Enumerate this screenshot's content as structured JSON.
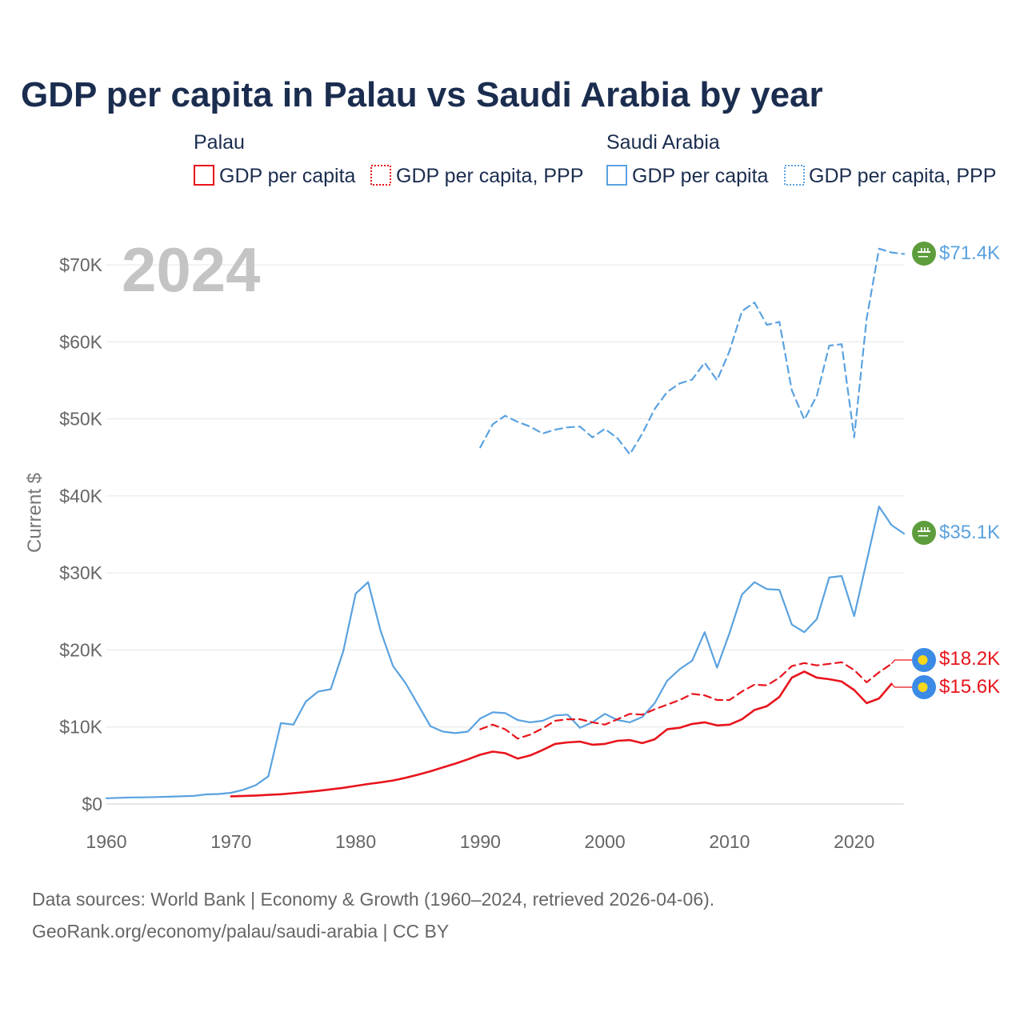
{
  "title": "GDP per capita in Palau vs Saudi Arabia by year",
  "legend": {
    "groups": [
      {
        "label": "Palau",
        "color": "#e8141c",
        "items": [
          "GDP per capita",
          "GDP per capita, PPP"
        ]
      },
      {
        "label": "Saudi Arabia",
        "color": "#5aa2e0",
        "items": [
          "GDP per capita",
          "GDP per capita, PPP"
        ]
      }
    ]
  },
  "year_marker": "2024",
  "end_labels": {
    "saudi_ppp": "$71.4K",
    "saudi_gdp": "$35.1K",
    "palau_ppp": "$18.2K",
    "palau_gdp": "$15.6K"
  },
  "icons": {
    "saudi": "saudi-arabia-flag-icon",
    "palau": "palau-flag-icon"
  },
  "source": {
    "line1": "Data sources: World Bank | Economy & Growth (1960–2024, retrieved 2026-04-06).",
    "line2": "GeoRank.org/economy/palau/saudi-arabia | CC BY"
  },
  "chart_data": {
    "type": "line",
    "title": "GDP per capita in Palau vs Saudi Arabia by year",
    "xlabel": "",
    "ylabel": "Current $",
    "xlim": [
      1960,
      2024
    ],
    "ylim": [
      0,
      75000
    ],
    "x_ticks": [
      1960,
      1970,
      1980,
      1990,
      2000,
      2010,
      2020
    ],
    "x_tick_labels": [
      "1960",
      "1970",
      "1980",
      "1990",
      "2000",
      "2010",
      "2020"
    ],
    "y_ticks": [
      0,
      10000,
      20000,
      30000,
      40000,
      50000,
      60000,
      70000
    ],
    "y_tick_labels": [
      "$0",
      "$10K",
      "$20K",
      "$30K",
      "$40K",
      "$50K",
      "$60K",
      "$70K"
    ],
    "grid": true,
    "series": [
      {
        "name": "Saudi Arabia GDP per capita",
        "country": "Saudi Arabia",
        "color": "#5aa2e0",
        "dashed": false,
        "start_year": 1960,
        "values": [
          750,
          800,
          850,
          860,
          900,
          950,
          1000,
          1050,
          1250,
          1300,
          1450,
          1850,
          2450,
          3600,
          10500,
          10300,
          13300,
          14600,
          14900,
          19800,
          27300,
          28800,
          22500,
          17900,
          15700,
          12900,
          10100,
          9400,
          9200,
          9400,
          11100,
          11900,
          11800,
          10900,
          10600,
          10800,
          11500,
          11600,
          9900,
          10600,
          11700,
          10900,
          10600,
          11300,
          13100,
          16000,
          17500,
          18600,
          22300,
          17700,
          22200,
          27200,
          28800,
          27900,
          27800,
          23300,
          22300,
          24000,
          29400,
          29600,
          24400,
          31500,
          38600,
          36200,
          35100
        ]
      },
      {
        "name": "Saudi Arabia GDP per capita, PPP",
        "country": "Saudi Arabia",
        "color": "#5aa2e0",
        "dashed": true,
        "start_year": 1990,
        "values": [
          46300,
          49300,
          50400,
          49600,
          49000,
          48100,
          48600,
          48900,
          49000,
          47600,
          48700,
          47500,
          45400,
          48100,
          51300,
          53500,
          54600,
          55100,
          57300,
          55000,
          58800,
          64000,
          65100,
          62200,
          62600,
          53700,
          49900,
          53000,
          59500,
          59700,
          47600,
          63000,
          72100,
          71600,
          71400
        ]
      },
      {
        "name": "Palau GDP per capita",
        "country": "Palau",
        "color": "#e8141c",
        "dashed": false,
        "start_year": 1970,
        "values": [
          1000,
          1050,
          1100,
          1180,
          1270,
          1400,
          1550,
          1700,
          1900,
          2100,
          2350,
          2600,
          2800,
          3050,
          3400,
          3800,
          4250,
          4750,
          5250,
          5800,
          6400,
          6800,
          6600,
          5900,
          6300,
          7000,
          7800,
          8000,
          8100,
          7700,
          7800,
          8200,
          8300,
          7900,
          8400,
          9700,
          9900,
          10400,
          10600,
          10200,
          10300,
          11000,
          12200,
          12700,
          13900,
          16400,
          17200,
          16400,
          16200,
          15900,
          14800,
          13100,
          13700,
          15600
        ]
      },
      {
        "name": "Palau GDP per capita, PPP",
        "country": "Palau",
        "color": "#e8141c",
        "dashed": true,
        "start_year": 1990,
        "values": [
          9700,
          10300,
          9700,
          8500,
          9000,
          9800,
          10800,
          11000,
          11000,
          10600,
          10300,
          11000,
          11700,
          11600,
          12300,
          12900,
          13500,
          14300,
          14100,
          13500,
          13500,
          14600,
          15500,
          15400,
          16400,
          17900,
          18300,
          18000,
          18200,
          18400,
          17400,
          15800,
          17100,
          18200
        ]
      }
    ]
  }
}
